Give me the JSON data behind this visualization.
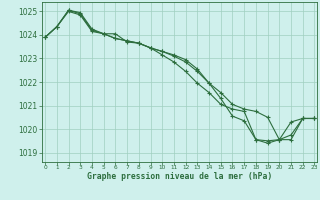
{
  "title": "Graphe pression niveau de la mer (hPa)",
  "background_color": "#cff0ec",
  "grid_color": "#a0cfc0",
  "line_color": "#2d6e3e",
  "xlim": [
    -0.3,
    23.2
  ],
  "ylim": [
    1018.6,
    1025.4
  ],
  "yticks": [
    1019,
    1020,
    1021,
    1022,
    1023,
    1024,
    1025
  ],
  "xticks": [
    0,
    1,
    2,
    3,
    4,
    5,
    6,
    7,
    8,
    9,
    10,
    11,
    12,
    13,
    14,
    15,
    16,
    17,
    18,
    19,
    20,
    21,
    22,
    23
  ],
  "series": [
    [
      1023.9,
      1024.35,
      1025.0,
      1024.85,
      1024.15,
      1024.05,
      1023.85,
      1023.75,
      1023.65,
      1023.45,
      1023.3,
      1023.1,
      1022.85,
      1022.45,
      1021.95,
      1021.3,
      1020.55,
      1020.35,
      1019.55,
      1019.5,
      1019.55,
      1020.3,
      1020.45,
      1020.45
    ],
    [
      1023.9,
      1024.35,
      1025.05,
      1024.9,
      1024.2,
      1024.05,
      1024.05,
      1023.7,
      1023.65,
      1023.45,
      1023.15,
      1022.85,
      1022.45,
      1021.95,
      1021.55,
      1021.05,
      1020.85,
      1020.75,
      1019.55,
      1019.4,
      1019.55,
      1019.75,
      1020.45,
      1020.45
    ],
    [
      1023.9,
      1024.35,
      1025.05,
      1024.95,
      1024.25,
      1024.05,
      1023.85,
      1023.75,
      1023.65,
      1023.45,
      1023.3,
      1023.15,
      1022.95,
      1022.55,
      1021.95,
      1021.55,
      1021.05,
      1020.85,
      1020.75,
      1020.5,
      1019.55,
      1019.55,
      1020.45,
      1020.45
    ]
  ]
}
